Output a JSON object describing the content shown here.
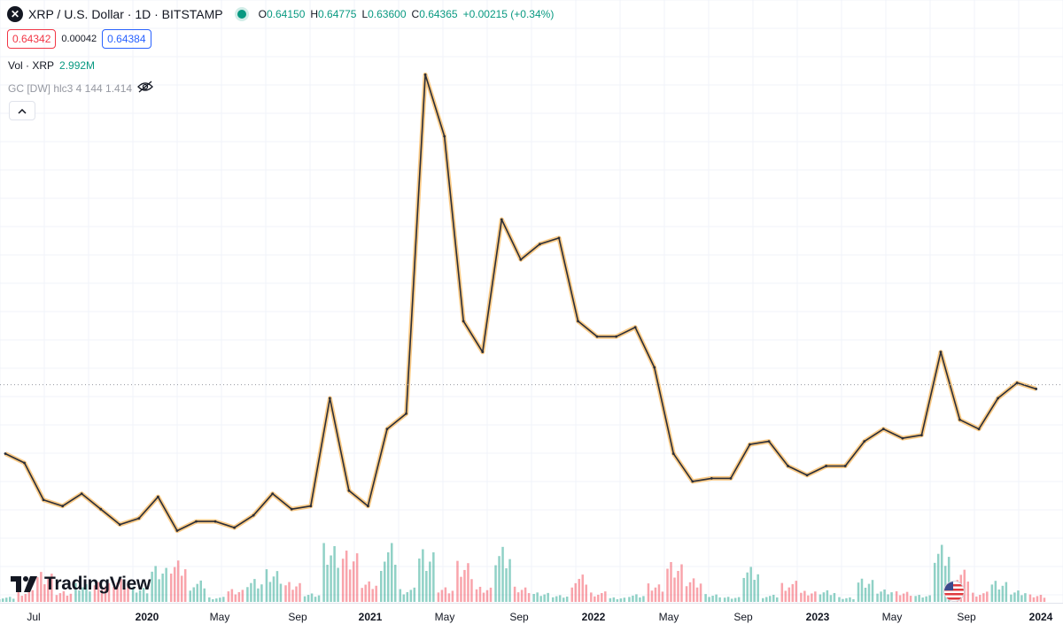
{
  "header": {
    "title": "XRP / U.S. Dollar · 1D · BITSTAMP",
    "ohlc": [
      {
        "k": "O",
        "v": "0.64150"
      },
      {
        "k": "H",
        "v": "0.64775"
      },
      {
        "k": "L",
        "v": "0.63600"
      },
      {
        "k": "C",
        "v": "0.64365"
      }
    ],
    "change": "+0.00215 (+0.34%)"
  },
  "prices": {
    "bid": "0.64342",
    "spread": "0.00042",
    "ask": "0.64384"
  },
  "volume": {
    "label": "Vol · XRP",
    "value": "2.992M"
  },
  "indicator": {
    "label": "GC [DW] hlc3 4 144 1.414"
  },
  "branding": {
    "logo_text": "TradingView"
  },
  "colors": {
    "up": "#089981",
    "down": "#f23645",
    "highlight": "#f7a024",
    "line": "#2a2e39"
  },
  "chart_data": {
    "type": "line",
    "title": "XRP / U.S. Dollar · 1D · BITSTAMP",
    "x_ticks": [
      "Jul",
      "2020",
      "May",
      "Sep",
      "2021",
      "May",
      "Sep",
      "2022",
      "May",
      "Sep",
      "2023",
      "May",
      "Sep",
      "2024"
    ],
    "x": [
      "2019-06",
      "2019-07",
      "2019-08",
      "2019-09",
      "2019-10",
      "2019-11",
      "2019-12",
      "2020-01",
      "2020-02",
      "2020-03",
      "2020-04",
      "2020-05",
      "2020-06",
      "2020-07",
      "2020-08",
      "2020-09",
      "2020-10",
      "2020-11",
      "2020-12",
      "2021-01",
      "2021-02",
      "2021-03",
      "2021-04",
      "2021-05",
      "2021-06",
      "2021-07",
      "2021-08",
      "2021-09",
      "2021-10",
      "2021-11",
      "2021-12",
      "2022-01",
      "2022-02",
      "2022-03",
      "2022-04",
      "2022-05",
      "2022-06",
      "2022-07",
      "2022-08",
      "2022-09",
      "2022-10",
      "2022-11",
      "2022-12",
      "2023-01",
      "2023-02",
      "2023-03",
      "2023-04",
      "2023-05",
      "2023-06",
      "2023-07",
      "2023-08",
      "2023-09",
      "2023-10",
      "2023-11",
      "2023-12"
    ],
    "series": [
      {
        "values": [
          0.42,
          0.39,
          0.27,
          0.25,
          0.29,
          0.24,
          0.19,
          0.21,
          0.28,
          0.17,
          0.2,
          0.2,
          0.18,
          0.22,
          0.29,
          0.24,
          0.25,
          0.6,
          0.3,
          0.25,
          0.5,
          0.55,
          1.65,
          1.45,
          0.85,
          0.75,
          1.18,
          1.05,
          1.1,
          1.12,
          0.85,
          0.8,
          0.8,
          0.83,
          0.7,
          0.42,
          0.33,
          0.34,
          0.34,
          0.45,
          0.46,
          0.38,
          0.35,
          0.38,
          0.38,
          0.46,
          0.5,
          0.47,
          0.48,
          0.75,
          0.53,
          0.5,
          0.6,
          0.65,
          0.63
        ]
      }
    ],
    "highlight_color": "#f7a024",
    "last_value": 0.64365
  }
}
